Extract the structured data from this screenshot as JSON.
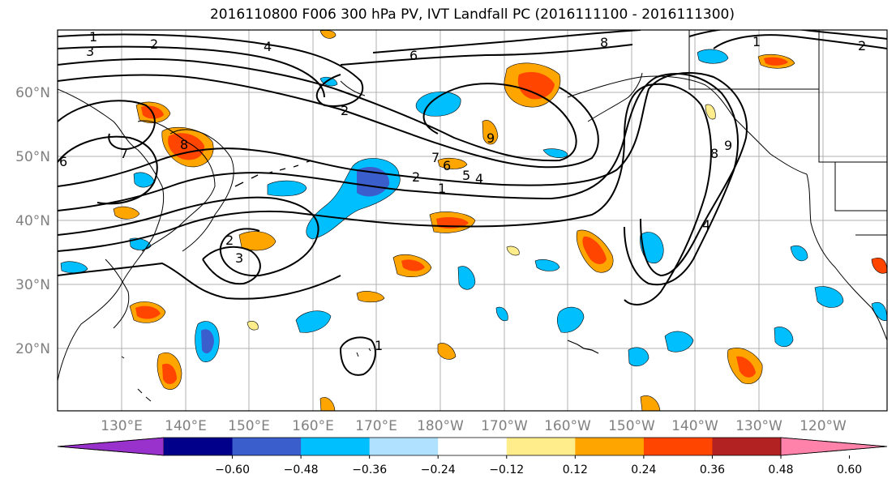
{
  "title": "2016110800 F006 300 hPa PV, IVT Landfall PC (2016111100 - 2016111300)",
  "map": {
    "lat_labels": [
      "60°N",
      "50°N",
      "40°N",
      "30°N",
      "20°N"
    ],
    "lon_labels": [
      "130°E",
      "140°E",
      "150°E",
      "160°E",
      "170°E",
      "180°W",
      "170°W",
      "160°W",
      "150°W",
      "140°W",
      "130°W",
      "120°W"
    ],
    "contour_labels": [
      "1",
      "2",
      "3",
      "4",
      "6",
      "8",
      "2",
      "7",
      "6",
      "5",
      "4",
      "2",
      "1",
      "7",
      "8",
      "9",
      "2",
      "3",
      "1",
      "8",
      "9",
      "4",
      "1",
      "2",
      "6"
    ]
  },
  "colorbar": {
    "ticks": [
      "−0.60",
      "−0.48",
      "−0.36",
      "−0.24",
      "−0.12",
      "0.12",
      "0.24",
      "0.36",
      "0.48",
      "0.60"
    ],
    "colors": [
      "#9932CC",
      "#00008B",
      "#3A5FCD",
      "#00BFFF",
      "#B0E2FF",
      "#FFFFFF",
      "#FFEC8B",
      "#FFA500",
      "#FF4500",
      "#B22222",
      "#FF82AB"
    ]
  }
}
